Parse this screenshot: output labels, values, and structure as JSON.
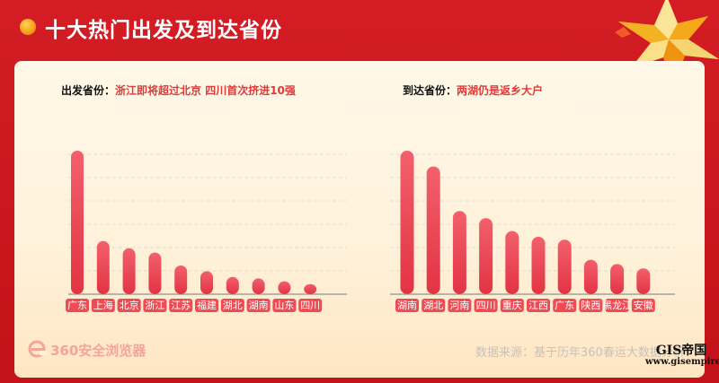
{
  "header": {
    "title": "十大热门出发及到达省份"
  },
  "left": {
    "subtitle_label": "出发省份：",
    "subtitle_highlight": "浙江即将超过北京 四川首次挤进10强"
  },
  "right": {
    "subtitle_label": "到达省份：",
    "subtitle_highlight": "两湖仍是返乡大户"
  },
  "footer": {
    "logo_text": "360安全浏览器",
    "source": "数据来源：基于历年360春运大数据分析"
  },
  "watermark": {
    "title": "GIS帝国",
    "url": "www.gisempire.com"
  },
  "colors": {
    "bar_top": "#f2606c",
    "bar_bottom": "#e23343",
    "axis": "#b9b3ad",
    "grid": "#e3ddd3",
    "highlight": "#e03a3a"
  },
  "chart_data": [
    {
      "type": "bar",
      "title": "出发省份",
      "categories": [
        "广东",
        "上海",
        "北京",
        "浙江",
        "江苏",
        "福建",
        "湖北",
        "湖南",
        "山东",
        "四川"
      ],
      "values": [
        100,
        37,
        32,
        29,
        20,
        16,
        12,
        11,
        9,
        7
      ],
      "ylim": [
        0,
        100
      ],
      "grid": true
    },
    {
      "type": "bar",
      "title": "到达省份",
      "categories": [
        "湖南",
        "湖北",
        "河南",
        "四川",
        "重庆",
        "江西",
        "广东",
        "陕西",
        "黑龙江",
        "安徽"
      ],
      "values": [
        100,
        89,
        58,
        53,
        44,
        40,
        38,
        24,
        21,
        18
      ],
      "ylim": [
        0,
        100
      ],
      "grid": true
    }
  ]
}
